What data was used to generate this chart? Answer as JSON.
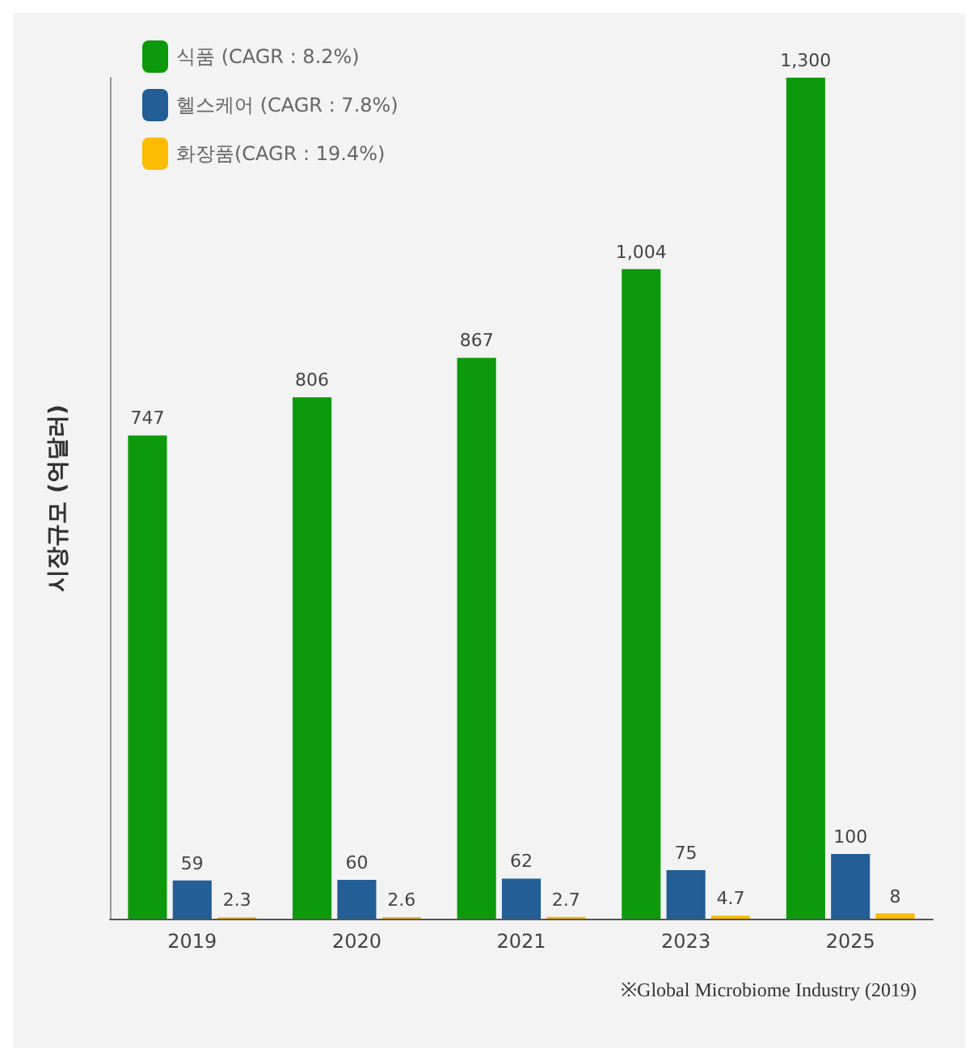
{
  "chart_data": {
    "type": "bar",
    "ylabel": "시장규모 (억달러)",
    "categories": [
      "2019",
      "2020",
      "2021",
      "2023",
      "2025"
    ],
    "legend": "top left",
    "grid": false,
    "series": [
      {
        "name": "식품 (CAGR : 8.2%)",
        "color": "#0c9a0c",
        "values": [
          747,
          806,
          867,
          1004,
          1300
        ],
        "value_labels": [
          "747",
          "806",
          "867",
          "1,004",
          "1,300"
        ]
      },
      {
        "name": "헬스케어 (CAGR : 7.8%)",
        "color": "#235e96",
        "values": [
          59,
          60,
          62,
          75,
          100
        ],
        "value_labels": [
          "59",
          "60",
          "62",
          "75",
          "100"
        ]
      },
      {
        "name": "화장품(CAGR : 19.4%)",
        "color": "#fbbb00",
        "values": [
          2.3,
          2.6,
          2.7,
          4.7,
          8
        ],
        "value_labels": [
          "2.3",
          "2.6",
          "2.7",
          "4.7",
          "8"
        ]
      }
    ],
    "annotations": [
      "※Global Microbiome Industry (2019)"
    ]
  }
}
